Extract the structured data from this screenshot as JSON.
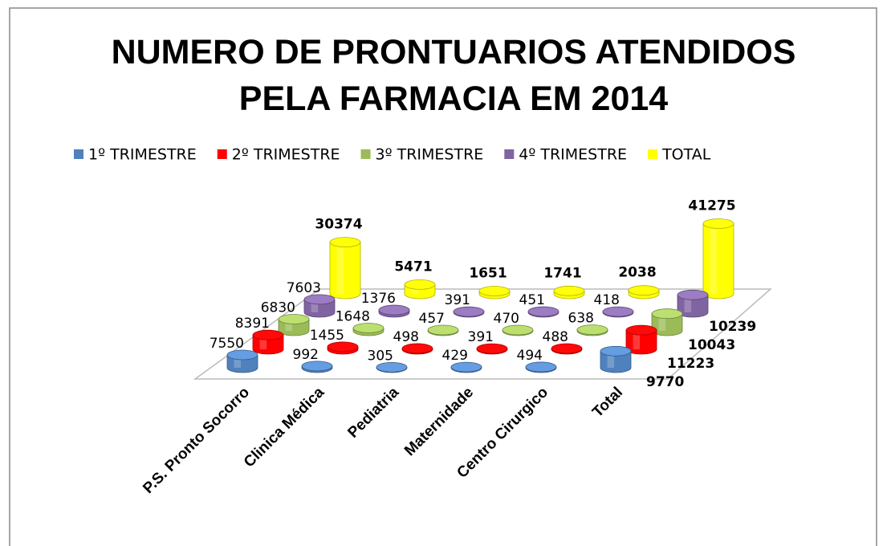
{
  "chart_data": {
    "type": "bar",
    "title": "NUMERO DE PRONTUARIOS ATENDIDOS PELA FARMACIA EM 2014",
    "categories": [
      "P.S. Pronto Socorro",
      "Clinica Médica",
      "Pediatria",
      "Maternidade",
      "Centro Cirurgico",
      "Total"
    ],
    "series": [
      {
        "name": "1º TRIMESTRE",
        "color": "#4f81bd",
        "values": [
          7550,
          992,
          305,
          429,
          494,
          9770
        ]
      },
      {
        "name": "2º TRIMESTRE",
        "color": "#ff0000",
        "values": [
          8391,
          1455,
          498,
          391,
          488,
          11223
        ]
      },
      {
        "name": "3º TRIMESTRE",
        "color": "#9bbb59",
        "values": [
          6830,
          1648,
          457,
          470,
          638,
          10043
        ]
      },
      {
        "name": "4º TRIMESTRE",
        "color": "#8064a2",
        "values": [
          7603,
          1376,
          391,
          451,
          418,
          10239
        ]
      },
      {
        "name": "TOTAL",
        "color": "#ffff00",
        "values": [
          30374,
          5471,
          1651,
          1741,
          2038,
          41275
        ]
      }
    ],
    "legend": "top"
  }
}
